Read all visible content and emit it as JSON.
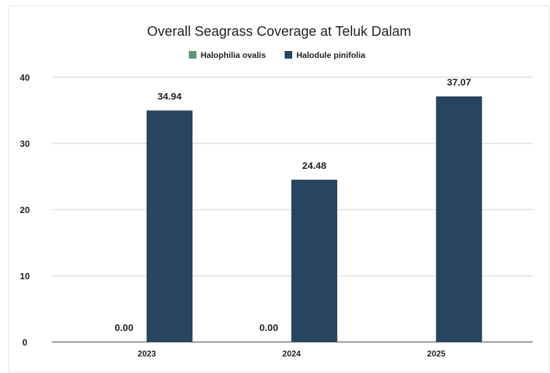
{
  "chart_data": {
    "type": "bar",
    "title": "Overall Seagrass Coverage at Teluk Dalam",
    "xlabel": "",
    "ylabel": "",
    "categories": [
      "2023",
      "2024",
      "2025"
    ],
    "series": [
      {
        "name": "Halophilia ovalis",
        "color": "#5e9470",
        "values": [
          0.0,
          0.0,
          null
        ],
        "labels": [
          "0.00",
          "0.00",
          ""
        ]
      },
      {
        "name": "Halodule pinifolia",
        "color": "#274560",
        "values": [
          34.94,
          24.48,
          37.07
        ],
        "labels": [
          "34.94",
          "24.48",
          "37.07"
        ]
      }
    ],
    "ylim": [
      0,
      40
    ],
    "yticks": [
      0,
      10,
      20,
      30,
      40
    ],
    "grid": true,
    "legend_position": "top"
  }
}
